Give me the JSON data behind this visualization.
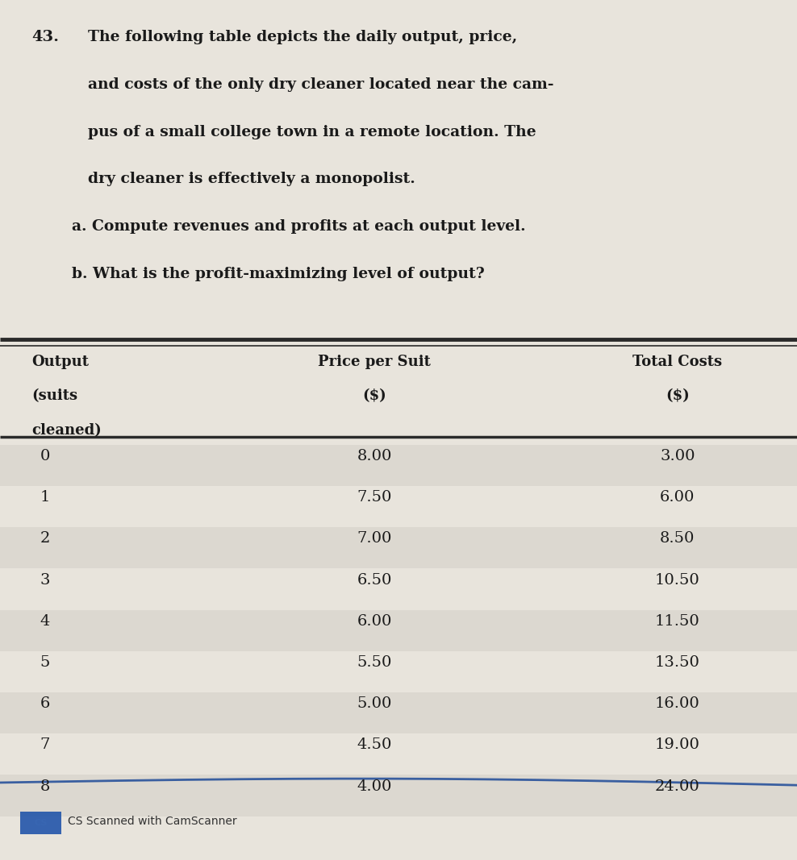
{
  "title_number": "43.",
  "title_text_line1": "The following table depicts the daily output, price,",
  "title_text_line2": "and costs of the only dry cleaner located near the cam-",
  "title_text_line3": "pus of a small college town in a remote location. The",
  "title_text_line4": "dry cleaner is effectively a monopolist.",
  "question_a": "a. Compute revenues and profits at each output level.",
  "question_b": "b. What is the profit-maximizing level of output?",
  "col1_header_line1": "Output",
  "col1_header_line2": "(suits",
  "col1_header_line3": "cleaned)",
  "col2_header_line1": "Price per Suit",
  "col2_header_line2": "($)",
  "col3_header_line1": "Total Costs",
  "col3_header_line2": "($)",
  "output": [
    0,
    1,
    2,
    3,
    4,
    5,
    6,
    7,
    8
  ],
  "price": [
    "8.00",
    "7.50",
    "7.00",
    "6.50",
    "6.00",
    "5.50",
    "5.00",
    "4.50",
    "4.00"
  ],
  "total_costs": [
    "3.00",
    "6.00",
    "8.50",
    "10.50",
    "11.50",
    "13.50",
    "16.00",
    "19.00",
    "24.00"
  ],
  "bg_color": "#e8e4dc",
  "text_color": "#1a1a1a",
  "footer_text": "CS Scanned with CamScanner",
  "line_color": "#2a2a2a",
  "blue_line_color": "#3a5fa0"
}
